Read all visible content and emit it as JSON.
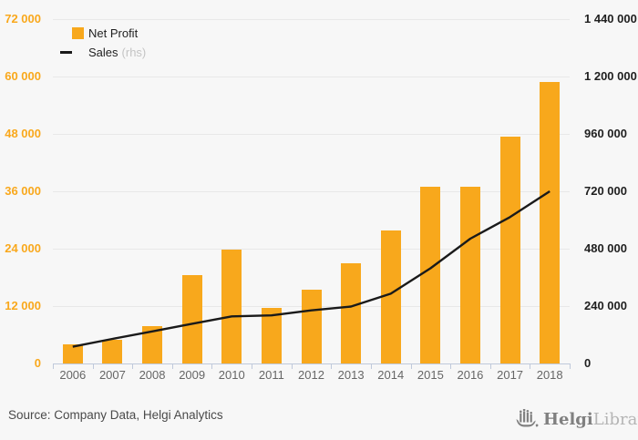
{
  "legend": {
    "net_profit_label": "Net Profit",
    "sales_label": "Sales",
    "sales_suffix": "(rhs)"
  },
  "left_axis": {
    "labels": [
      "72 000",
      "60 000",
      "48 000",
      "36 000",
      "24 000",
      "12 000",
      "0"
    ],
    "tick_values": [
      72000,
      60000,
      48000,
      36000,
      24000,
      12000,
      0
    ]
  },
  "right_axis": {
    "labels": [
      "1 440 000",
      "1 200 000",
      "960 000",
      "720 000",
      "480 000",
      "240 000",
      "0"
    ],
    "tick_values": [
      1440000,
      1200000,
      960000,
      720000,
      480000,
      240000,
      0
    ]
  },
  "source": {
    "text": "Source: Company Data, Helgi Analytics"
  },
  "logo": {
    "brand_bold": "Helgi",
    "brand_light": "Library."
  },
  "colors": {
    "bar": "#f8a81c",
    "line": "#1a1a1a",
    "left_axis_text": "#f9a81c",
    "right_axis_text": "#1f1f1f",
    "year_text": "#666666",
    "grid": "#e8e8e8",
    "axis": "#bfc9db",
    "background": "#f7f7f7",
    "source_text": "#4a4a4a",
    "legend_suffix": "#c4c4c4",
    "logo_dark": "#808080",
    "logo_light": "#b5b5b5"
  },
  "chart_data": {
    "type": "bar",
    "title": "",
    "categories": [
      "2006",
      "2007",
      "2008",
      "2009",
      "2010",
      "2011",
      "2012",
      "2013",
      "2014",
      "2015",
      "2016",
      "2017",
      "2018"
    ],
    "series": [
      {
        "name": "Net Profit",
        "type": "bar",
        "axis": "left",
        "values": [
          4000,
          4900,
          7900,
          18400,
          23800,
          11700,
          15400,
          21000,
          27800,
          36900,
          37000,
          47400,
          58900
        ]
      },
      {
        "name": "Sales (rhs)",
        "type": "line",
        "axis": "right",
        "values": [
          70000,
          103000,
          134000,
          166000,
          197000,
          201000,
          222000,
          238000,
          292000,
          398000,
          522000,
          612000,
          720000
        ]
      }
    ],
    "left_ylim": [
      0,
      72000
    ],
    "right_ylim": [
      0,
      1440000
    ],
    "grid": true,
    "legend_position": "top-left"
  }
}
